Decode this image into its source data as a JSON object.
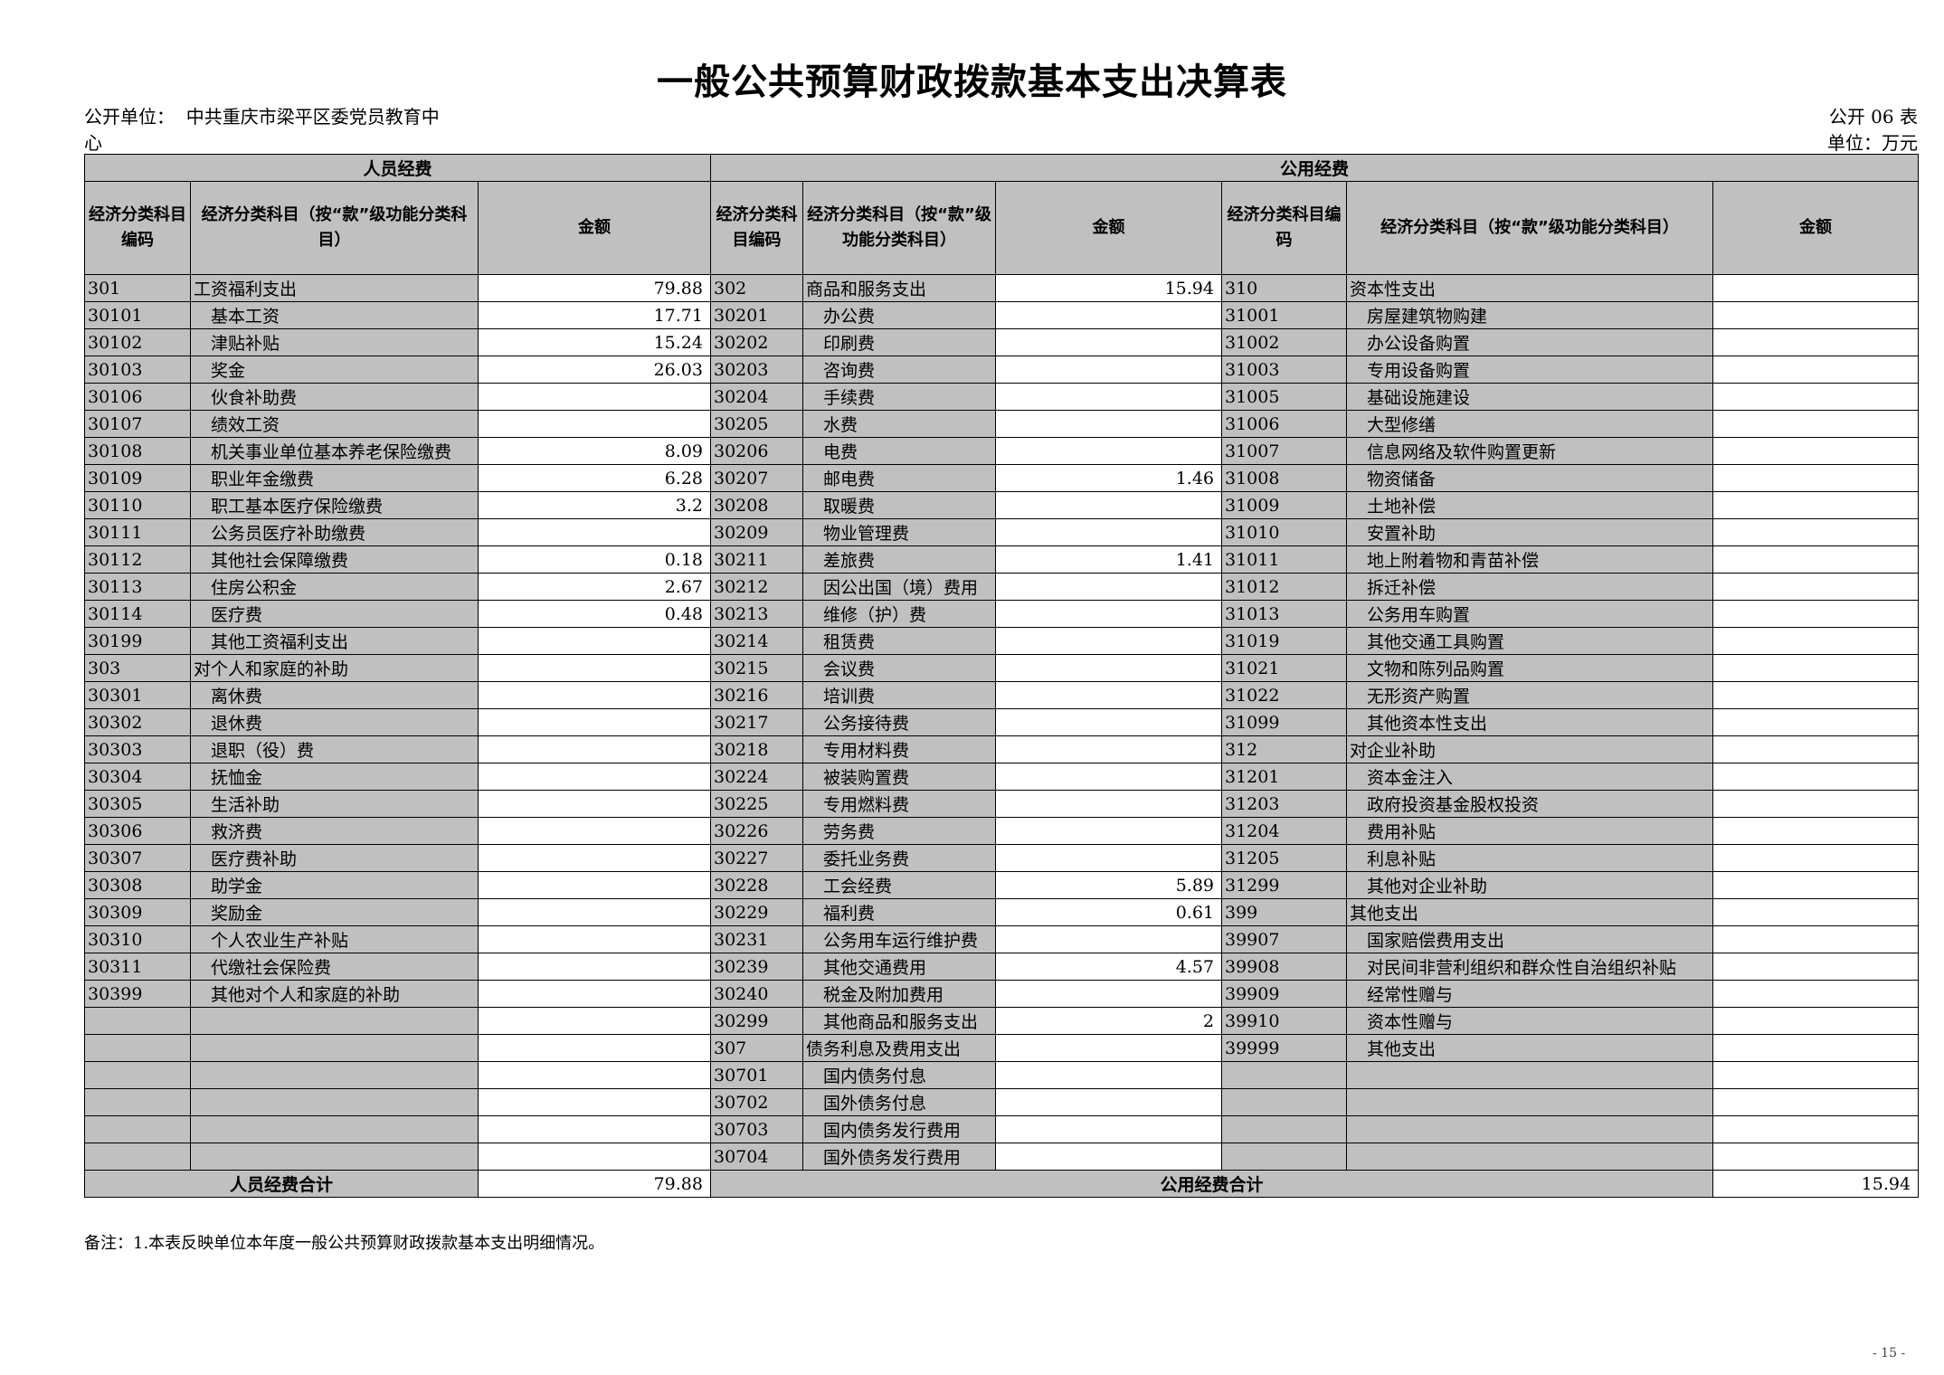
{
  "title": "一般公共预算财政拨款基本支出决算表",
  "unit_label": "公开单位：",
  "unit_name_line1": "中共重庆市梁平区委党员教育中",
  "unit_name_line2": "心",
  "table_no": "公开 06 表",
  "currency_unit": "单位：万元",
  "headers": {
    "personnel": "人员经费",
    "public": "公用经费",
    "code": "经济分类科目编码",
    "name": "经济分类科目（按“款”级功能分类科目）",
    "amount": "金额"
  },
  "personnel_rows": [
    {
      "code": "301",
      "name": "工资福利支出",
      "amount": "79.88",
      "top": true
    },
    {
      "code": "30101",
      "name": "基本工资",
      "amount": "17.71"
    },
    {
      "code": "30102",
      "name": "津贴补贴",
      "amount": "15.24"
    },
    {
      "code": "30103",
      "name": "奖金",
      "amount": "26.03"
    },
    {
      "code": "30106",
      "name": "伙食补助费",
      "amount": ""
    },
    {
      "code": "30107",
      "name": "绩效工资",
      "amount": ""
    },
    {
      "code": "30108",
      "name": "机关事业单位基本养老保险缴费",
      "amount": "8.09"
    },
    {
      "code": "30109",
      "name": "职业年金缴费",
      "amount": "6.28"
    },
    {
      "code": "30110",
      "name": "职工基本医疗保险缴费",
      "amount": "3.2"
    },
    {
      "code": "30111",
      "name": "公务员医疗补助缴费",
      "amount": ""
    },
    {
      "code": "30112",
      "name": "其他社会保障缴费",
      "amount": "0.18"
    },
    {
      "code": "30113",
      "name": "住房公积金",
      "amount": "2.67"
    },
    {
      "code": "30114",
      "name": "医疗费",
      "amount": "0.48"
    },
    {
      "code": "30199",
      "name": "其他工资福利支出",
      "amount": ""
    },
    {
      "code": "303",
      "name": "对个人和家庭的补助",
      "amount": "",
      "top": true
    },
    {
      "code": "30301",
      "name": "离休费",
      "amount": ""
    },
    {
      "code": "30302",
      "name": "退休费",
      "amount": ""
    },
    {
      "code": "30303",
      "name": "退职（役）费",
      "amount": ""
    },
    {
      "code": "30304",
      "name": "抚恤金",
      "amount": ""
    },
    {
      "code": "30305",
      "name": "生活补助",
      "amount": ""
    },
    {
      "code": "30306",
      "name": "救济费",
      "amount": ""
    },
    {
      "code": "30307",
      "name": "医疗费补助",
      "amount": ""
    },
    {
      "code": "30308",
      "name": "助学金",
      "amount": ""
    },
    {
      "code": "30309",
      "name": "奖励金",
      "amount": ""
    },
    {
      "code": "30310",
      "name": "个人农业生产补贴",
      "amount": ""
    },
    {
      "code": "30311",
      "name": "代缴社会保险费",
      "amount": ""
    },
    {
      "code": "30399",
      "name": "其他对个人和家庭的补助",
      "amount": ""
    }
  ],
  "public_rows_a": [
    {
      "code": "302",
      "name": "商品和服务支出",
      "amount": "15.94",
      "top": true
    },
    {
      "code": "30201",
      "name": "办公费",
      "amount": ""
    },
    {
      "code": "30202",
      "name": "印刷费",
      "amount": ""
    },
    {
      "code": "30203",
      "name": "咨询费",
      "amount": ""
    },
    {
      "code": "30204",
      "name": "手续费",
      "amount": ""
    },
    {
      "code": "30205",
      "name": "水费",
      "amount": ""
    },
    {
      "code": "30206",
      "name": "电费",
      "amount": ""
    },
    {
      "code": "30207",
      "name": "邮电费",
      "amount": "1.46"
    },
    {
      "code": "30208",
      "name": "取暖费",
      "amount": ""
    },
    {
      "code": "30209",
      "name": "物业管理费",
      "amount": ""
    },
    {
      "code": "30211",
      "name": "差旅费",
      "amount": "1.41"
    },
    {
      "code": "30212",
      "name": "因公出国（境）费用",
      "amount": ""
    },
    {
      "code": "30213",
      "name": "维修（护）费",
      "amount": ""
    },
    {
      "code": "30214",
      "name": "租赁费",
      "amount": ""
    },
    {
      "code": "30215",
      "name": "会议费",
      "amount": ""
    },
    {
      "code": "30216",
      "name": "培训费",
      "amount": ""
    },
    {
      "code": "30217",
      "name": "公务接待费",
      "amount": ""
    },
    {
      "code": "30218",
      "name": "专用材料费",
      "amount": ""
    },
    {
      "code": "30224",
      "name": "被装购置费",
      "amount": ""
    },
    {
      "code": "30225",
      "name": "专用燃料费",
      "amount": ""
    },
    {
      "code": "30226",
      "name": "劳务费",
      "amount": ""
    },
    {
      "code": "30227",
      "name": "委托业务费",
      "amount": ""
    },
    {
      "code": "30228",
      "name": "工会经费",
      "amount": "5.89"
    },
    {
      "code": "30229",
      "name": "福利费",
      "amount": "0.61"
    },
    {
      "code": "30231",
      "name": "公务用车运行维护费",
      "amount": ""
    },
    {
      "code": "30239",
      "name": "其他交通费用",
      "amount": "4.57"
    },
    {
      "code": "30240",
      "name": "税金及附加费用",
      "amount": ""
    },
    {
      "code": "30299",
      "name": "其他商品和服务支出",
      "amount": "2"
    },
    {
      "code": "307",
      "name": "债务利息及费用支出",
      "amount": "",
      "top": true
    },
    {
      "code": "30701",
      "name": "国内债务付息",
      "amount": ""
    },
    {
      "code": "30702",
      "name": "国外债务付息",
      "amount": ""
    },
    {
      "code": "30703",
      "name": "国内债务发行费用",
      "amount": ""
    },
    {
      "code": "30704",
      "name": "国外债务发行费用",
      "amount": ""
    }
  ],
  "public_rows_b": [
    {
      "code": "310",
      "name": "资本性支出",
      "amount": "",
      "top": true
    },
    {
      "code": "31001",
      "name": "房屋建筑物购建",
      "amount": ""
    },
    {
      "code": "31002",
      "name": "办公设备购置",
      "amount": ""
    },
    {
      "code": "31003",
      "name": "专用设备购置",
      "amount": ""
    },
    {
      "code": "31005",
      "name": "基础设施建设",
      "amount": ""
    },
    {
      "code": "31006",
      "name": "大型修缮",
      "amount": ""
    },
    {
      "code": "31007",
      "name": "信息网络及软件购置更新",
      "amount": ""
    },
    {
      "code": "31008",
      "name": "物资储备",
      "amount": ""
    },
    {
      "code": "31009",
      "name": "土地补偿",
      "amount": ""
    },
    {
      "code": "31010",
      "name": "安置补助",
      "amount": ""
    },
    {
      "code": "31011",
      "name": "地上附着物和青苗补偿",
      "amount": ""
    },
    {
      "code": "31012",
      "name": "拆迁补偿",
      "amount": ""
    },
    {
      "code": "31013",
      "name": "公务用车购置",
      "amount": ""
    },
    {
      "code": "31019",
      "name": "其他交通工具购置",
      "amount": ""
    },
    {
      "code": "31021",
      "name": "文物和陈列品购置",
      "amount": ""
    },
    {
      "code": "31022",
      "name": "无形资产购置",
      "amount": ""
    },
    {
      "code": "31099",
      "name": "其他资本性支出",
      "amount": ""
    },
    {
      "code": "312",
      "name": "对企业补助",
      "amount": "",
      "top": true
    },
    {
      "code": "31201",
      "name": "资本金注入",
      "amount": ""
    },
    {
      "code": "31203",
      "name": "政府投资基金股权投资",
      "amount": ""
    },
    {
      "code": "31204",
      "name": "费用补贴",
      "amount": ""
    },
    {
      "code": "31205",
      "name": "利息补贴",
      "amount": ""
    },
    {
      "code": "31299",
      "name": "其他对企业补助",
      "amount": ""
    },
    {
      "code": "399",
      "name": "其他支出",
      "amount": "",
      "top": true
    },
    {
      "code": "39907",
      "name": "国家赔偿费用支出",
      "amount": ""
    },
    {
      "code": "39908",
      "name": "对民间非营利组织和群众性自治组织补贴",
      "amount": ""
    },
    {
      "code": "39909",
      "name": "经常性赠与",
      "amount": ""
    },
    {
      "code": "39910",
      "name": "资本性赠与",
      "amount": ""
    },
    {
      "code": "39999",
      "name": "其他支出",
      "amount": ""
    }
  ],
  "totals": {
    "personnel_label": "人员经费合计",
    "personnel_amount": "79.88",
    "public_label": "公用经费合计",
    "public_amount": "15.94"
  },
  "note": "备注：1.本表反映单位本年度一般公共预算财政拨款基本支出明细情况。",
  "page_number": "- 15 -"
}
